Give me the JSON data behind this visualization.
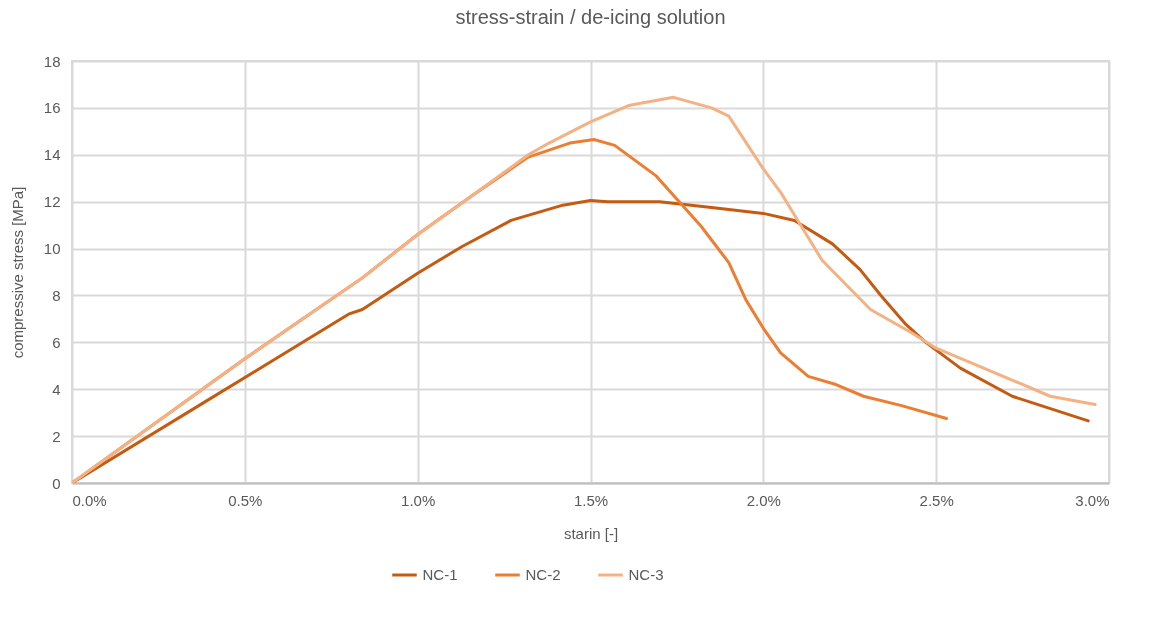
{
  "chart_data": {
    "type": "line",
    "title": "stress-strain / de-icing solution",
    "xlabel": "starin [-]",
    "ylabel": "compressive stress [MPa]",
    "xlim": [
      0,
      3
    ],
    "xticks": [
      {
        "value": 0,
        "label": "0.0%"
      },
      {
        "value": 0.5,
        "label": "0.5%"
      },
      {
        "value": 1,
        "label": "1.0%"
      },
      {
        "value": 1.5,
        "label": "1.5%"
      },
      {
        "value": 2,
        "label": "2.0%"
      },
      {
        "value": 2.5,
        "label": "2.5%"
      },
      {
        "value": 3,
        "label": "3.0%"
      }
    ],
    "ylim": [
      0,
      18
    ],
    "yticks": [
      0,
      2,
      4,
      6,
      8,
      10,
      12,
      14,
      16,
      18
    ],
    "grid": true,
    "legend": "bottom",
    "marker": "none",
    "line_style": "solid",
    "series": [
      {
        "name": "NC-1",
        "color": "#c55a11",
        "x": [
          0,
          0.4,
          0.8,
          0.84,
          1.0,
          1.13,
          1.27,
          1.42,
          1.5,
          1.55,
          1.7,
          1.85,
          2.0,
          2.09,
          2.2,
          2.28,
          2.34,
          2.41,
          2.47,
          2.57,
          2.72,
          2.94
        ],
        "values": [
          0,
          3.6,
          7.2,
          7.4,
          8.95,
          10.1,
          11.2,
          11.85,
          12.05,
          12.0,
          12.0,
          11.75,
          11.5,
          11.2,
          10.2,
          9.1,
          8.0,
          6.8,
          6.0,
          4.9,
          3.7,
          2.65
        ]
      },
      {
        "name": "NC-2",
        "color": "#ed7d31",
        "x": [
          0,
          0.5,
          0.84,
          1.0,
          1.157,
          1.32,
          1.44,
          1.51,
          1.57,
          1.69,
          1.82,
          1.9,
          1.95,
          2.0,
          2.05,
          2.13,
          2.21,
          2.29,
          2.4,
          2.53
        ],
        "values": [
          0,
          5.3,
          8.75,
          10.6,
          12.25,
          13.9,
          14.5,
          14.65,
          14.4,
          13.1,
          10.95,
          9.4,
          7.8,
          6.6,
          5.55,
          4.55,
          4.2,
          3.7,
          3.3,
          2.75
        ]
      },
      {
        "name": "NC-3",
        "color": "#f4b183",
        "x": [
          0,
          0.5,
          0.84,
          1.0,
          1.157,
          1.32,
          1.38,
          1.5,
          1.61,
          1.74,
          1.85,
          1.9,
          2.0,
          2.05,
          2.17,
          2.31,
          2.43,
          2.5,
          2.67,
          2.83,
          2.96
        ],
        "values": [
          0,
          5.3,
          8.75,
          10.6,
          12.25,
          14.0,
          14.5,
          15.4,
          16.1,
          16.45,
          16.0,
          15.65,
          13.4,
          12.4,
          9.5,
          7.4,
          6.4,
          5.75,
          4.7,
          3.7,
          3.35
        ]
      }
    ]
  }
}
